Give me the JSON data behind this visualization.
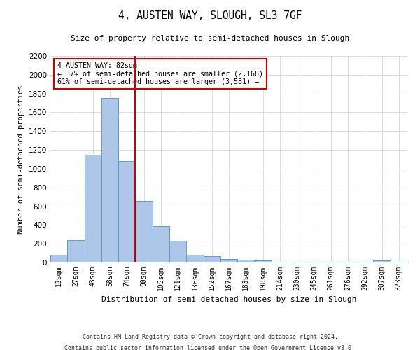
{
  "title": "4, AUSTEN WAY, SLOUGH, SL3 7GF",
  "subtitle": "Size of property relative to semi-detached houses in Slough",
  "xlabel": "Distribution of semi-detached houses by size in Slough",
  "ylabel": "Number of semi-detached properties",
  "categories": [
    "12sqm",
    "27sqm",
    "43sqm",
    "58sqm",
    "74sqm",
    "90sqm",
    "105sqm",
    "121sqm",
    "136sqm",
    "152sqm",
    "167sqm",
    "183sqm",
    "198sqm",
    "214sqm",
    "230sqm",
    "245sqm",
    "261sqm",
    "276sqm",
    "292sqm",
    "307sqm",
    "323sqm"
  ],
  "bar_heights": [
    80,
    240,
    1150,
    1750,
    1080,
    660,
    390,
    230,
    80,
    65,
    35,
    30,
    20,
    5,
    5,
    5,
    5,
    5,
    5,
    20,
    5
  ],
  "bar_color": "#aec6e8",
  "bar_edge_color": "#5a9fd4",
  "property_line_bin": 4,
  "property_sqm": 82,
  "annotation_title": "4 AUSTEN WAY: 82sqm",
  "annotation_line1": "← 37% of semi-detached houses are smaller (2,168)",
  "annotation_line2": "61% of semi-detached houses are larger (3,581) →",
  "annotation_box_color": "#ffffff",
  "annotation_box_edge_color": "#cc0000",
  "property_line_color": "#cc0000",
  "ylim": [
    0,
    2200
  ],
  "yticks": [
    0,
    200,
    400,
    600,
    800,
    1000,
    1200,
    1400,
    1600,
    1800,
    2000,
    2200
  ],
  "footer_line1": "Contains HM Land Registry data © Crown copyright and database right 2024.",
  "footer_line2": "Contains public sector information licensed under the Open Government Licence v3.0.",
  "background_color": "#ffffff",
  "grid_color": "#d0d0d0"
}
